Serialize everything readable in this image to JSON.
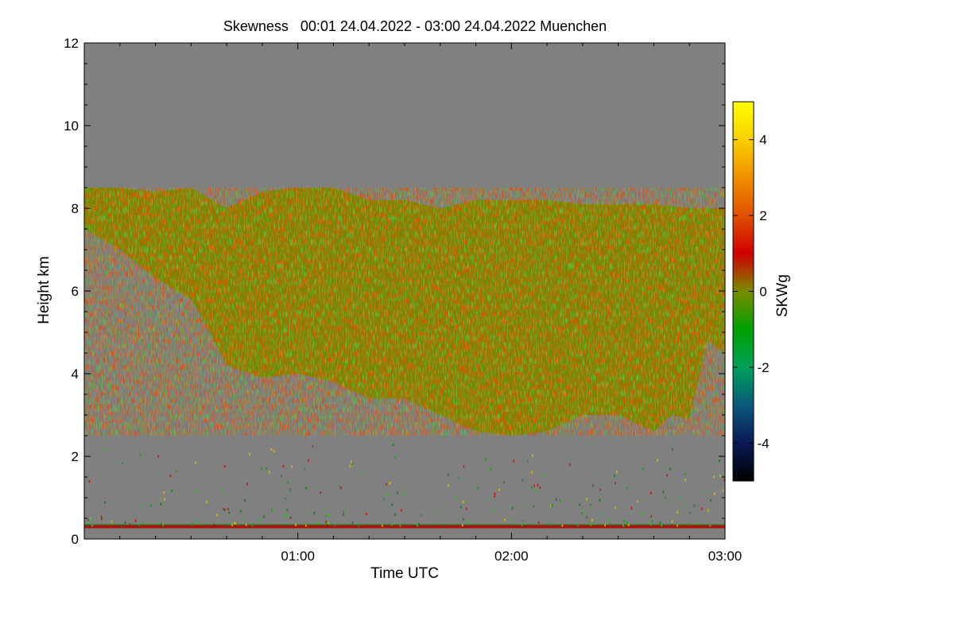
{
  "chart_data": {
    "type": "heatmap",
    "title": "Skewness   00:01 24.04.2022 - 03:00 24.04.2022 Muenchen",
    "xlabel": "Time UTC",
    "ylabel": "Height km",
    "xlim": [
      0,
      180
    ],
    "ylim": [
      0,
      12
    ],
    "x_ticks": [
      {
        "value": 60,
        "label": "01:00"
      },
      {
        "value": 120,
        "label": "02:00"
      },
      {
        "value": 180,
        "label": "03:00"
      }
    ],
    "y_ticks": [
      {
        "value": 0,
        "label": "0"
      },
      {
        "value": 2,
        "label": "2"
      },
      {
        "value": 4,
        "label": "4"
      },
      {
        "value": 6,
        "label": "6"
      },
      {
        "value": 8,
        "label": "8"
      },
      {
        "value": 10,
        "label": "10"
      },
      {
        "value": 12,
        "label": "12"
      }
    ],
    "background_color": "#808080",
    "colorbar": {
      "label": "SKWg",
      "range": [
        -5,
        5
      ],
      "ticks": [
        {
          "value": 4,
          "label": "4"
        },
        {
          "value": 2,
          "label": "2"
        },
        {
          "value": 0,
          "label": "0"
        },
        {
          "value": -2,
          "label": "-2"
        },
        {
          "value": -4,
          "label": "-4"
        }
      ],
      "stops": [
        {
          "value": -5,
          "color": "#000000"
        },
        {
          "value": -4,
          "color": "#0a1a55"
        },
        {
          "value": -3,
          "color": "#0a5a7a"
        },
        {
          "value": -2,
          "color": "#00a05a"
        },
        {
          "value": -1,
          "color": "#00a000"
        },
        {
          "value": 0,
          "color": "#7a8a00"
        },
        {
          "value": 1,
          "color": "#d00000"
        },
        {
          "value": 2,
          "color": "#e05000"
        },
        {
          "value": 3,
          "color": "#f09000"
        },
        {
          "value": 4,
          "color": "#f8d000"
        },
        {
          "value": 5,
          "color": "#ffff00"
        }
      ]
    },
    "cloud_region": {
      "top_km": [
        [
          0,
          8.5
        ],
        [
          10,
          8.5
        ],
        [
          20,
          8.4
        ],
        [
          30,
          8.5
        ],
        [
          40,
          8.0
        ],
        [
          50,
          8.4
        ],
        [
          60,
          8.5
        ],
        [
          70,
          8.5
        ],
        [
          80,
          8.2
        ],
        [
          90,
          8.2
        ],
        [
          100,
          8.0
        ],
        [
          110,
          8.2
        ],
        [
          120,
          8.2
        ],
        [
          130,
          8.2
        ],
        [
          140,
          8.1
        ],
        [
          150,
          8.1
        ],
        [
          160,
          8.1
        ],
        [
          170,
          8.0
        ],
        [
          180,
          8.0
        ]
      ],
      "base_km": [
        [
          0,
          7.5
        ],
        [
          10,
          7.0
        ],
        [
          20,
          6.3
        ],
        [
          30,
          5.8
        ],
        [
          34,
          5.2
        ],
        [
          40,
          4.2
        ],
        [
          50,
          3.9
        ],
        [
          60,
          4.0
        ],
        [
          70,
          3.8
        ],
        [
          80,
          3.4
        ],
        [
          90,
          3.4
        ],
        [
          100,
          3.0
        ],
        [
          110,
          2.6
        ],
        [
          120,
          2.5
        ],
        [
          130,
          2.6
        ],
        [
          140,
          3.0
        ],
        [
          150,
          3.0
        ],
        [
          160,
          2.6
        ],
        [
          165,
          3.0
        ],
        [
          170,
          2.9
        ],
        [
          175,
          4.8
        ],
        [
          180,
          4.5
        ]
      ]
    },
    "surface_layer_km": 0.3
  }
}
